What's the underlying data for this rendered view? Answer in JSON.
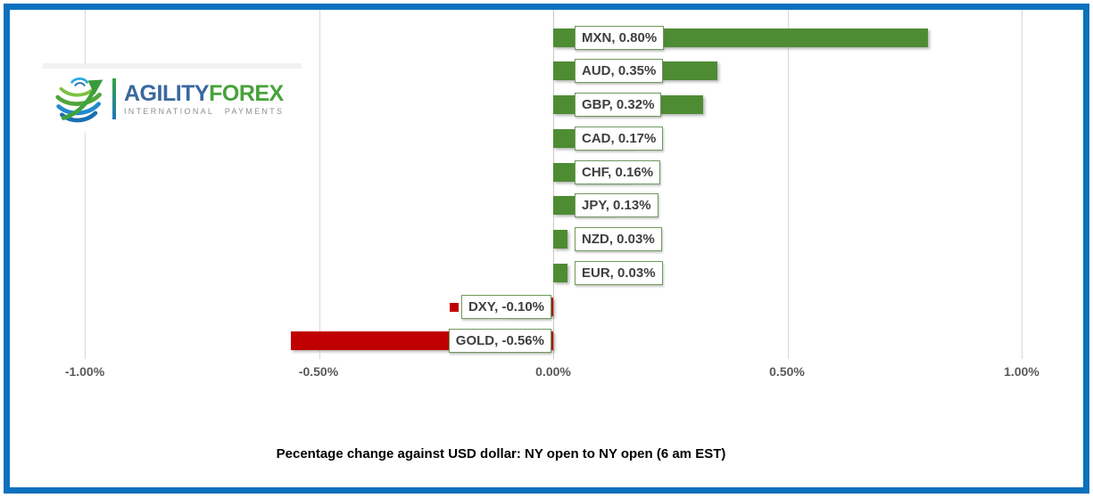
{
  "frame": {
    "border_color": "#0C71BE"
  },
  "logo": {
    "brand_primary": "AGILITY",
    "brand_secondary": "FOREX",
    "tagline": "INTERNATIONAL PAYMENTS",
    "colors": {
      "primary": "#39689E",
      "secondary": "#46A339",
      "tagline": "#8F8F8F"
    }
  },
  "chart_data": {
    "type": "bar",
    "orientation": "horizontal",
    "title": "Pecentage change against USD dollar: NY open to NY open  (6 am EST)",
    "categories": [
      "MXN",
      "AUD",
      "GBP",
      "CAD",
      "CHF",
      "JPY",
      "NZD",
      "EUR",
      "DXY",
      "GOLD"
    ],
    "values": [
      0.8,
      0.35,
      0.32,
      0.17,
      0.16,
      0.13,
      0.03,
      0.03,
      -0.1,
      -0.56
    ],
    "data_labels": [
      "MXN, 0.80%",
      "AUD, 0.35%",
      "GBP, 0.32%",
      "CAD, 0.17%",
      "CHF, 0.16%",
      "JPY, 0.13%",
      "NZD, 0.03%",
      "EUR, 0.03%",
      "DXY, -0.10%",
      "GOLD, -0.56%"
    ],
    "data_label_legend_key": "DXY",
    "x_ticks": [
      "-1.00%",
      "-0.50%",
      "0.00%",
      "0.50%",
      "1.00%"
    ],
    "xlim": [
      -1.0,
      1.0
    ],
    "xlabel": "",
    "ylabel": "",
    "grid": true,
    "legend": "none",
    "positive_color": "#4E8C33",
    "negative_color": "#C00000",
    "grid_color": "#D9D9D9",
    "label_border_color": "#70985C",
    "axis_text_color": "#595959"
  }
}
